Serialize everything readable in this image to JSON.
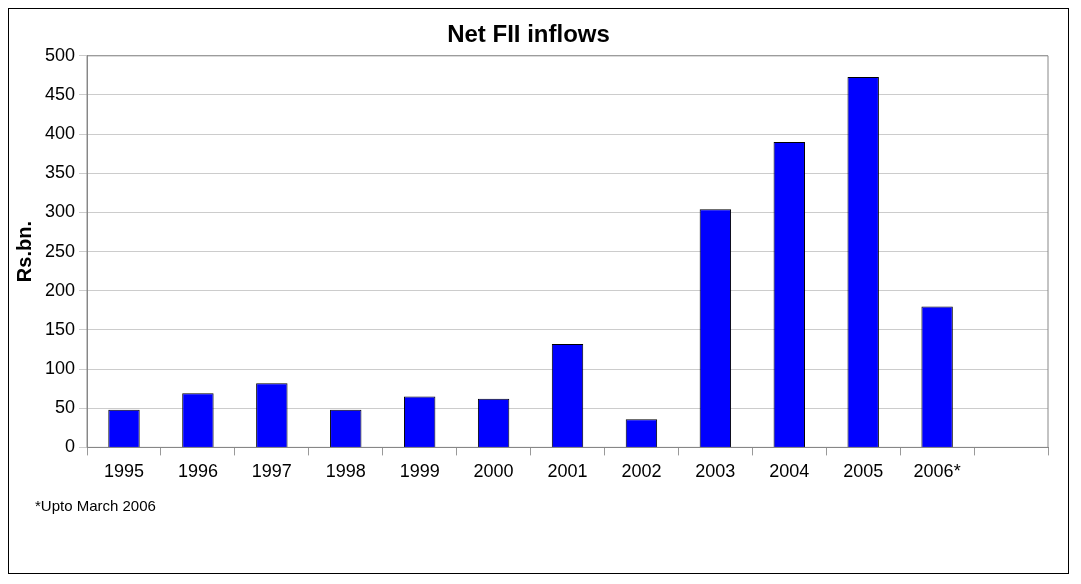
{
  "chart_data": {
    "type": "bar",
    "title": "Net FII inflows",
    "ylabel": "Rs.bn.",
    "categories": [
      "1995",
      "1996",
      "1997",
      "1998",
      "1999",
      "2000",
      "2001",
      "2002",
      "2003",
      "2004",
      "2005",
      "2006*",
      null
    ],
    "values": [
      48,
      69,
      82,
      48,
      65,
      62,
      132,
      36,
      304,
      390,
      473,
      180,
      null
    ],
    "color": "#0000ff",
    "ylim": [
      0,
      500
    ],
    "yticks": [
      0,
      50,
      100,
      150,
      200,
      250,
      300,
      350,
      400,
      450,
      500
    ],
    "grid": "y",
    "annotations": [
      "*Upto March 2006"
    ]
  }
}
